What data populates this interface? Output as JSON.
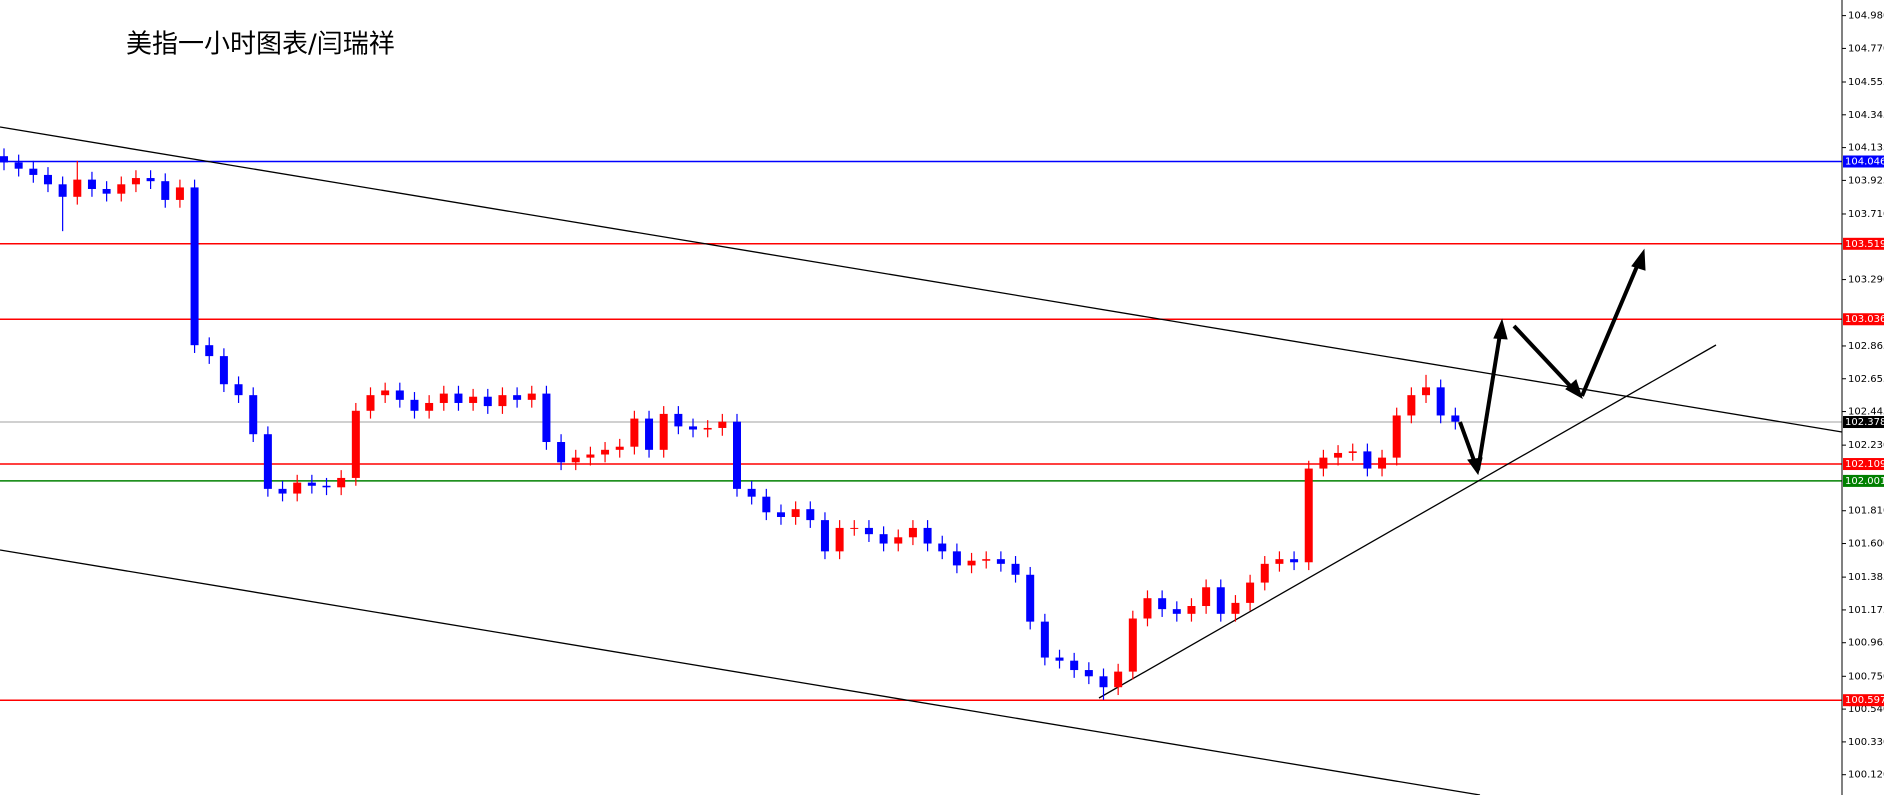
{
  "chart_data": {
    "type": "candlestick",
    "title": "美指一小时图表/闫瑞祥",
    "ylim": [
      99.99,
      105.08
    ],
    "yticks": [
      {
        "value": 104.98,
        "label": "104.980"
      },
      {
        "value": 104.77,
        "label": "104.770"
      },
      104.555,
      104.345,
      104.135,
      103.925,
      {
        "value": 103.71,
        "label": "103.710"
      },
      {
        "value": 103.29,
        "label": "103.290"
      },
      102.865,
      102.655,
      102.445,
      {
        "value": 102.23,
        "label": "102.230"
      },
      {
        "value": 101.81,
        "label": "101.810"
      },
      {
        "value": 101.6,
        "label": "101.600"
      },
      101.385,
      101.175,
      100.965,
      {
        "value": 100.75,
        "label": "100.750"
      },
      {
        "value": 100.54,
        "label": "100.540"
      },
      {
        "value": 100.33,
        "label": "100.330"
      },
      {
        "value": 100.12,
        "label": "100.120"
      }
    ],
    "up_color": "#ff0000",
    "down_color": "#0000ff",
    "levels": [
      {
        "value": 104.046,
        "color": "#0000ff",
        "label_color": "#0000ff"
      },
      {
        "value": 103.519,
        "color": "#ff0000",
        "label_color": "#ff0000"
      },
      {
        "value": 103.036,
        "color": "#ff0000",
        "label_color": "#ff0000"
      },
      {
        "value": 102.378,
        "color": "#c0c0c0",
        "label_color": "#000000"
      },
      {
        "value": 102.109,
        "color": "#ff0000",
        "label_color": "#ff0000"
      },
      {
        "value": 102.001,
        "color": "#008000",
        "label_color": "#008000"
      },
      {
        "value": 100.597,
        "color": "#ff0000",
        "label_color": "#ff0000"
      }
    ],
    "open": [
      104.08,
      104.04,
      104.0,
      103.96,
      103.9,
      103.82,
      103.93,
      103.87,
      103.84,
      103.9,
      103.94,
      103.92,
      103.8,
      103.88,
      102.87,
      102.8,
      102.62,
      102.55,
      102.3,
      101.95,
      101.92,
      101.99,
      101.97,
      101.96,
      102.02,
      102.45,
      102.55,
      102.58,
      102.52,
      102.45,
      102.5,
      102.56,
      102.5,
      102.54,
      102.48,
      102.55,
      102.52,
      102.56,
      102.25,
      102.12,
      102.15,
      102.17,
      102.2,
      102.22,
      102.4,
      102.2,
      102.43,
      102.35,
      102.33,
      102.34,
      102.38,
      101.95,
      101.9,
      101.8,
      101.77,
      101.82,
      101.75,
      101.55,
      101.7,
      101.7,
      101.66,
      101.6,
      101.64,
      101.7,
      101.6,
      101.55,
      101.46,
      101.49,
      101.5,
      101.47,
      101.4,
      101.1,
      100.87,
      100.85,
      100.79,
      100.75,
      100.68,
      100.78,
      101.12,
      101.25,
      101.18,
      101.15,
      101.2,
      101.32,
      101.15,
      101.22,
      101.35,
      101.47,
      101.5,
      101.48,
      102.08,
      102.15,
      102.18,
      102.19,
      102.08,
      102.15,
      102.42,
      102.55,
      102.6,
      102.42
    ],
    "high": [
      104.13,
      104.09,
      104.05,
      104.01,
      103.95,
      104.05,
      103.98,
      103.92,
      103.95,
      103.99,
      103.99,
      103.97,
      103.93,
      103.93,
      102.92,
      102.85,
      102.67,
      102.6,
      102.35,
      102.0,
      102.04,
      102.04,
      102.02,
      102.07,
      102.5,
      102.6,
      102.63,
      102.63,
      102.57,
      102.55,
      102.61,
      102.61,
      102.59,
      102.59,
      102.6,
      102.6,
      102.61,
      102.61,
      102.3,
      102.2,
      102.22,
      102.25,
      102.27,
      102.45,
      102.45,
      102.48,
      102.48,
      102.4,
      102.39,
      102.43,
      102.43,
      102.0,
      101.95,
      101.85,
      101.87,
      101.87,
      101.8,
      101.75,
      101.75,
      101.75,
      101.71,
      101.69,
      101.75,
      101.75,
      101.65,
      101.6,
      101.54,
      101.55,
      101.55,
      101.52,
      101.45,
      101.15,
      100.92,
      100.9,
      100.84,
      100.8,
      100.83,
      101.17,
      101.3,
      101.3,
      101.23,
      101.25,
      101.37,
      101.37,
      101.27,
      101.4,
      101.52,
      101.55,
      101.55,
      102.13,
      102.2,
      102.23,
      102.24,
      102.24,
      102.2,
      102.47,
      102.6,
      102.68,
      102.65,
      102.47
    ],
    "low": [
      103.99,
      103.95,
      103.91,
      103.85,
      103.6,
      103.77,
      103.82,
      103.79,
      103.79,
      103.85,
      103.87,
      103.75,
      103.75,
      102.82,
      102.75,
      102.57,
      102.5,
      102.25,
      101.9,
      101.87,
      101.87,
      101.92,
      101.91,
      101.91,
      101.97,
      102.4,
      102.5,
      102.47,
      102.4,
      102.4,
      102.45,
      102.45,
      102.45,
      102.43,
      102.43,
      102.47,
      102.47,
      102.2,
      102.07,
      102.07,
      102.1,
      102.12,
      102.15,
      102.17,
      102.15,
      102.15,
      102.3,
      102.28,
      102.28,
      102.29,
      101.9,
      101.85,
      101.75,
      101.72,
      101.72,
      101.7,
      101.5,
      101.5,
      101.65,
      101.61,
      101.55,
      101.55,
      101.59,
      101.55,
      101.5,
      101.41,
      101.41,
      101.44,
      101.42,
      101.35,
      101.05,
      100.82,
      100.8,
      100.74,
      100.7,
      100.6,
      100.63,
      100.73,
      101.07,
      101.13,
      101.1,
      101.1,
      101.15,
      101.1,
      101.1,
      101.17,
      101.3,
      101.42,
      101.43,
      101.43,
      102.03,
      102.1,
      102.13,
      102.03,
      102.03,
      102.1,
      102.37,
      102.5,
      102.37,
      102.33
    ],
    "close": [
      104.04,
      104.0,
      103.96,
      103.9,
      103.82,
      103.93,
      103.87,
      103.84,
      103.9,
      103.94,
      103.92,
      103.8,
      103.88,
      102.87,
      102.8,
      102.62,
      102.55,
      102.3,
      101.95,
      101.92,
      101.99,
      101.97,
      101.96,
      102.02,
      102.45,
      102.55,
      102.58,
      102.52,
      102.45,
      102.5,
      102.56,
      102.5,
      102.54,
      102.48,
      102.55,
      102.52,
      102.56,
      102.25,
      102.12,
      102.15,
      102.17,
      102.2,
      102.22,
      102.4,
      102.2,
      102.43,
      102.35,
      102.33,
      102.34,
      102.38,
      101.95,
      101.9,
      101.8,
      101.77,
      101.82,
      101.75,
      101.55,
      101.7,
      101.7,
      101.66,
      101.6,
      101.64,
      101.7,
      101.6,
      101.55,
      101.46,
      101.49,
      101.5,
      101.47,
      101.4,
      101.1,
      100.87,
      100.85,
      100.79,
      100.75,
      100.68,
      100.78,
      101.12,
      101.25,
      101.18,
      101.15,
      101.2,
      101.32,
      101.15,
      101.22,
      101.35,
      101.47,
      101.5,
      101.48,
      102.08,
      102.15,
      102.18,
      102.19,
      102.08,
      102.15,
      102.42,
      102.55,
      102.6,
      102.42,
      102.38
    ]
  }
}
